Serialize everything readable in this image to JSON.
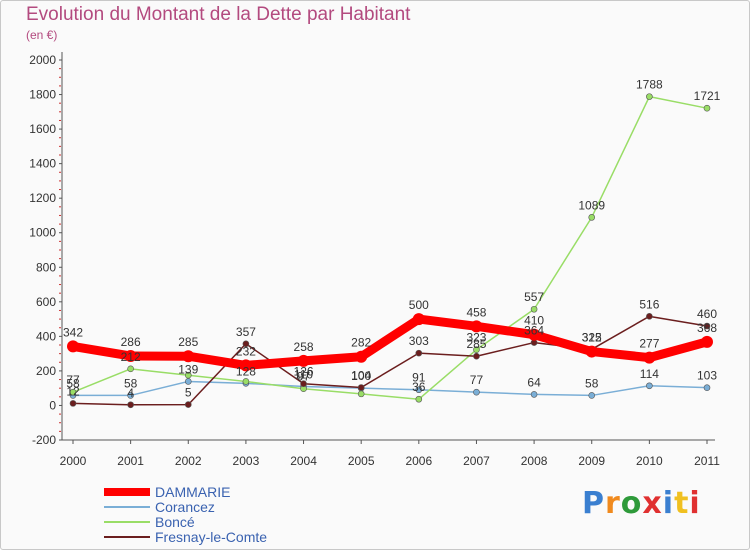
{
  "title": "Evolution du Montant de la Dette par Habitant",
  "unit_label": "(en €)",
  "logo": {
    "text": "Proxiti",
    "colors": [
      "#3a7fd0",
      "#f08a1e",
      "#2e9a3a",
      "#e03030",
      "#3a7fd0",
      "#f0c020",
      "#e03030"
    ]
  },
  "chart_data": {
    "type": "line",
    "x": [
      "2000",
      "2001",
      "2002",
      "2003",
      "2004",
      "2005",
      "2006",
      "2007",
      "2008",
      "2009",
      "2010",
      "2011"
    ],
    "ylim": [
      -200,
      2000
    ],
    "yticks": [
      -200,
      0,
      200,
      400,
      600,
      800,
      1000,
      1200,
      1400,
      1600,
      1800,
      2000
    ],
    "grid": false,
    "legend_position": "bottom-left",
    "series": [
      {
        "name": "DAMMARIE",
        "color": "#ff0000",
        "width": 9,
        "dot": 6,
        "values": [
          342,
          286,
          285,
          232,
          258,
          282,
          500,
          458,
          410,
          312,
          277,
          368
        ],
        "labels": [
          "342",
          "286",
          "285",
          "232",
          "258",
          "282",
          "500",
          "458",
          "410",
          "312",
          "277",
          "368"
        ]
      },
      {
        "name": "Corancez",
        "color": "#7aaed6",
        "width": 1.5,
        "dot": 3,
        "values": [
          58,
          58,
          139,
          128,
          110,
          100,
          91,
          77,
          64,
          58,
          114,
          103
        ],
        "labels": [
          "58",
          "58",
          "139",
          "128",
          "110",
          "100",
          "91",
          "77",
          "64",
          "58",
          "114",
          "103"
        ]
      },
      {
        "name": "Boncé",
        "color": "#99dd66",
        "width": 1.5,
        "dot": 3,
        "values": [
          77,
          212,
          175,
          139,
          97,
          67,
          36,
          323,
          557,
          1089,
          1788,
          1721
        ],
        "labels": [
          "77",
          "212",
          "",
          "",
          "97",
          "",
          "36",
          "323",
          "557",
          "1089",
          "1788",
          "1721"
        ]
      },
      {
        "name": "Fresnay-le-Comte",
        "color": "#6b1e1e",
        "width": 1.5,
        "dot": 3,
        "values": [
          12,
          4,
          5,
          357,
          126,
          104,
          303,
          285,
          364,
          325,
          516,
          460
        ],
        "labels": [
          "12",
          "4",
          "5",
          "357",
          "126",
          "104",
          "303",
          "285",
          "364",
          "325",
          "516",
          "460"
        ]
      }
    ]
  }
}
